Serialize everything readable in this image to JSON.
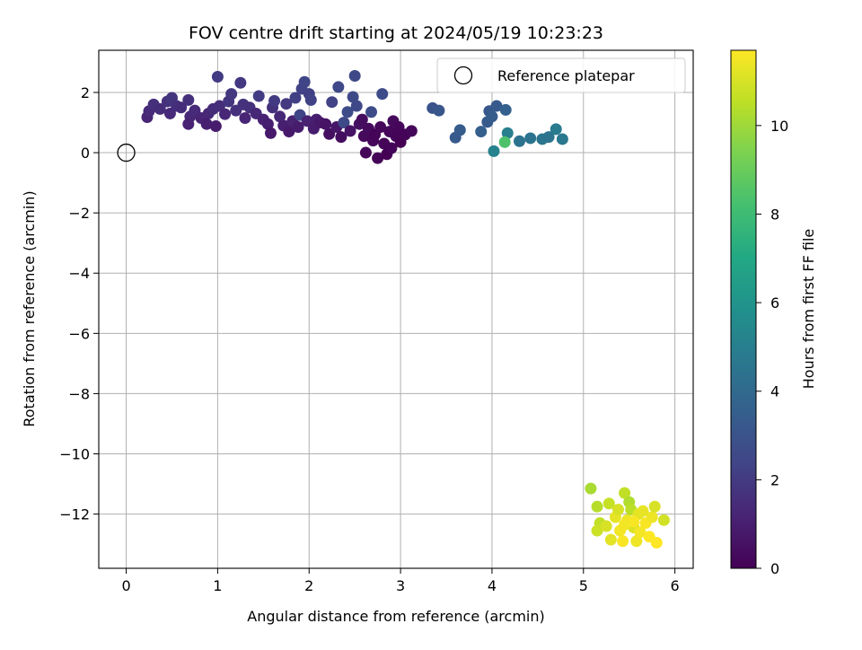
{
  "chart_data": {
    "type": "scatter",
    "title": "FOV centre drift starting at 2024/05/19 10:23:23",
    "xlabel": "Angular distance from reference (arcmin)",
    "ylabel": "Rotation from reference (arcmin)",
    "xlim": [
      -0.3,
      6.2
    ],
    "ylim": [
      -13.8,
      3.4
    ],
    "xticks": [
      0,
      1,
      2,
      3,
      4,
      5,
      6
    ],
    "xtick_labels": [
      "0",
      "1",
      "2",
      "3",
      "4",
      "5",
      "6"
    ],
    "yticks": [
      2,
      0,
      -2,
      -4,
      -6,
      -8,
      -10,
      -12
    ],
    "ytick_labels": [
      "2",
      "0",
      "−2",
      "−4",
      "−6",
      "−8",
      "−10",
      "−12"
    ],
    "grid": true,
    "legend": {
      "position": "upper-right",
      "entries": [
        {
          "label": "Reference platepar",
          "marker": "open-circle"
        }
      ]
    },
    "reference_point": {
      "x": 0,
      "y": 0
    },
    "colorbar": {
      "label": "Hours from first FF file",
      "colormap": "viridis",
      "range": [
        0,
        11.7
      ],
      "ticks": [
        0,
        2,
        4,
        6,
        8,
        10
      ],
      "tick_labels": [
        "0",
        "2",
        "4",
        "6",
        "8",
        "10"
      ]
    },
    "points": [
      {
        "x": 0.23,
        "y": 1.18,
        "h": 1.2
      },
      {
        "x": 0.25,
        "y": 1.38,
        "h": 1.4
      },
      {
        "x": 0.3,
        "y": 1.6,
        "h": 1.6
      },
      {
        "x": 0.37,
        "y": 1.45,
        "h": 1.5
      },
      {
        "x": 0.45,
        "y": 1.7,
        "h": 1.7
      },
      {
        "x": 0.5,
        "y": 1.82,
        "h": 1.8
      },
      {
        "x": 0.55,
        "y": 1.55,
        "h": 1.6
      },
      {
        "x": 0.48,
        "y": 1.3,
        "h": 1.4
      },
      {
        "x": 0.6,
        "y": 1.5,
        "h": 1.5
      },
      {
        "x": 0.68,
        "y": 1.75,
        "h": 1.6
      },
      {
        "x": 0.7,
        "y": 1.2,
        "h": 1.3
      },
      {
        "x": 0.68,
        "y": 0.95,
        "h": 1.1
      },
      {
        "x": 0.75,
        "y": 1.4,
        "h": 1.4
      },
      {
        "x": 0.82,
        "y": 1.15,
        "h": 1.2
      },
      {
        "x": 0.9,
        "y": 1.3,
        "h": 1.3
      },
      {
        "x": 0.88,
        "y": 0.95,
        "h": 1.0
      },
      {
        "x": 0.95,
        "y": 1.45,
        "h": 1.5
      },
      {
        "x": 0.98,
        "y": 0.88,
        "h": 0.9
      },
      {
        "x": 1.02,
        "y": 1.55,
        "h": 1.5
      },
      {
        "x": 1.0,
        "y": 2.52,
        "h": 2.0
      },
      {
        "x": 1.08,
        "y": 1.28,
        "h": 1.3
      },
      {
        "x": 1.12,
        "y": 1.7,
        "h": 1.8
      },
      {
        "x": 1.15,
        "y": 1.95,
        "h": 1.9
      },
      {
        "x": 1.2,
        "y": 1.4,
        "h": 1.6
      },
      {
        "x": 1.25,
        "y": 2.32,
        "h": 1.9
      },
      {
        "x": 1.28,
        "y": 1.6,
        "h": 1.7
      },
      {
        "x": 1.3,
        "y": 1.15,
        "h": 1.2
      },
      {
        "x": 1.35,
        "y": 1.5,
        "h": 1.6
      },
      {
        "x": 1.42,
        "y": 1.3,
        "h": 1.3
      },
      {
        "x": 1.45,
        "y": 1.88,
        "h": 2.1
      },
      {
        "x": 1.5,
        "y": 1.1,
        "h": 1.1
      },
      {
        "x": 1.55,
        "y": 0.95,
        "h": 1.0
      },
      {
        "x": 1.58,
        "y": 0.65,
        "h": 0.8
      },
      {
        "x": 1.6,
        "y": 1.5,
        "h": 1.6
      },
      {
        "x": 1.62,
        "y": 1.72,
        "h": 2.0
      },
      {
        "x": 1.68,
        "y": 1.2,
        "h": 1.3
      },
      {
        "x": 1.72,
        "y": 0.9,
        "h": 1.0
      },
      {
        "x": 1.75,
        "y": 1.62,
        "h": 1.9
      },
      {
        "x": 1.78,
        "y": 0.7,
        "h": 0.8
      },
      {
        "x": 1.82,
        "y": 1.05,
        "h": 1.1
      },
      {
        "x": 1.85,
        "y": 1.82,
        "h": 2.2
      },
      {
        "x": 1.88,
        "y": 0.85,
        "h": 0.9
      },
      {
        "x": 1.9,
        "y": 1.25,
        "h": 2.4
      },
      {
        "x": 1.92,
        "y": 2.12,
        "h": 2.3
      },
      {
        "x": 1.95,
        "y": 2.35,
        "h": 2.4
      },
      {
        "x": 1.98,
        "y": 1.05,
        "h": 1.1
      },
      {
        "x": 2.0,
        "y": 1.95,
        "h": 2.2
      },
      {
        "x": 2.02,
        "y": 1.75,
        "h": 2.3
      },
      {
        "x": 2.05,
        "y": 0.8,
        "h": 0.9
      },
      {
        "x": 2.08,
        "y": 1.1,
        "h": 1.0
      },
      {
        "x": 2.12,
        "y": 1.0,
        "h": 0.8
      },
      {
        "x": 2.18,
        "y": 0.95,
        "h": 0.6
      },
      {
        "x": 2.22,
        "y": 0.62,
        "h": 0.5
      },
      {
        "x": 2.25,
        "y": 1.68,
        "h": 2.3
      },
      {
        "x": 2.3,
        "y": 0.85,
        "h": 0.7
      },
      {
        "x": 2.32,
        "y": 2.18,
        "h": 2.5
      },
      {
        "x": 2.35,
        "y": 0.52,
        "h": 0.4
      },
      {
        "x": 2.38,
        "y": 1.0,
        "h": 2.6
      },
      {
        "x": 2.42,
        "y": 1.35,
        "h": 2.7
      },
      {
        "x": 2.45,
        "y": 0.72,
        "h": 0.6
      },
      {
        "x": 2.48,
        "y": 1.85,
        "h": 2.6
      },
      {
        "x": 2.5,
        "y": 2.55,
        "h": 2.6
      },
      {
        "x": 2.52,
        "y": 1.55,
        "h": 2.5
      },
      {
        "x": 2.55,
        "y": 0.95,
        "h": 0.5
      },
      {
        "x": 2.58,
        "y": 1.1,
        "h": 0.4
      },
      {
        "x": 2.6,
        "y": 0.55,
        "h": 0.3
      },
      {
        "x": 2.62,
        "y": 0.0,
        "h": 0.2
      },
      {
        "x": 2.65,
        "y": 0.8,
        "h": 0.3
      },
      {
        "x": 2.68,
        "y": 1.35,
        "h": 2.7
      },
      {
        "x": 2.7,
        "y": 0.4,
        "h": 0.2
      },
      {
        "x": 2.72,
        "y": 0.6,
        "h": 0.1
      },
      {
        "x": 2.75,
        "y": -0.18,
        "h": 0.1
      },
      {
        "x": 2.78,
        "y": 0.85,
        "h": 0.2
      },
      {
        "x": 2.8,
        "y": 1.95,
        "h": 2.7
      },
      {
        "x": 2.82,
        "y": 0.3,
        "h": 0.1
      },
      {
        "x": 2.85,
        "y": -0.05,
        "h": 0.0
      },
      {
        "x": 2.88,
        "y": 0.7,
        "h": 0.2
      },
      {
        "x": 2.9,
        "y": 0.15,
        "h": 0.1
      },
      {
        "x": 2.92,
        "y": 1.05,
        "h": 0.3
      },
      {
        "x": 2.95,
        "y": 0.55,
        "h": 0.1
      },
      {
        "x": 2.98,
        "y": 0.85,
        "h": 0.2
      },
      {
        "x": 3.0,
        "y": 0.35,
        "h": 0.0
      },
      {
        "x": 3.05,
        "y": 0.6,
        "h": 0.1
      },
      {
        "x": 3.12,
        "y": 0.72,
        "h": 0.2
      },
      {
        "x": 3.35,
        "y": 1.48,
        "h": 3.0
      },
      {
        "x": 3.42,
        "y": 1.4,
        "h": 3.1
      },
      {
        "x": 3.6,
        "y": 0.5,
        "h": 3.3
      },
      {
        "x": 3.65,
        "y": 0.75,
        "h": 3.4
      },
      {
        "x": 3.88,
        "y": 0.7,
        "h": 3.5
      },
      {
        "x": 3.95,
        "y": 1.02,
        "h": 3.3
      },
      {
        "x": 3.97,
        "y": 1.38,
        "h": 3.2
      },
      {
        "x": 4.0,
        "y": 1.2,
        "h": 3.4
      },
      {
        "x": 4.02,
        "y": 0.05,
        "h": 5.2
      },
      {
        "x": 4.05,
        "y": 1.55,
        "h": 3.3
      },
      {
        "x": 4.15,
        "y": 1.42,
        "h": 3.6
      },
      {
        "x": 4.17,
        "y": 0.65,
        "h": 5.0
      },
      {
        "x": 4.14,
        "y": 0.35,
        "h": 8.4
      },
      {
        "x": 4.3,
        "y": 0.38,
        "h": 4.4
      },
      {
        "x": 4.42,
        "y": 0.48,
        "h": 4.5
      },
      {
        "x": 4.55,
        "y": 0.45,
        "h": 4.6
      },
      {
        "x": 4.62,
        "y": 0.52,
        "h": 4.5
      },
      {
        "x": 4.7,
        "y": 0.78,
        "h": 4.8
      },
      {
        "x": 4.77,
        "y": 0.45,
        "h": 4.7
      },
      {
        "x": 5.08,
        "y": -11.15,
        "h": 10.2
      },
      {
        "x": 5.15,
        "y": -11.75,
        "h": 10.4
      },
      {
        "x": 5.18,
        "y": -12.3,
        "h": 10.6
      },
      {
        "x": 5.15,
        "y": -12.55,
        "h": 10.8
      },
      {
        "x": 5.25,
        "y": -12.4,
        "h": 11.0
      },
      {
        "x": 5.28,
        "y": -11.65,
        "h": 10.7
      },
      {
        "x": 5.3,
        "y": -12.85,
        "h": 11.2
      },
      {
        "x": 5.35,
        "y": -12.1,
        "h": 11.3
      },
      {
        "x": 5.38,
        "y": -11.85,
        "h": 11.0
      },
      {
        "x": 5.4,
        "y": -12.55,
        "h": 11.5
      },
      {
        "x": 5.43,
        "y": -12.9,
        "h": 11.6
      },
      {
        "x": 5.45,
        "y": -11.3,
        "h": 10.6
      },
      {
        "x": 5.48,
        "y": -12.2,
        "h": 11.4
      },
      {
        "x": 5.5,
        "y": -11.6,
        "h": 10.3
      },
      {
        "x": 5.52,
        "y": -11.85,
        "h": 10.5
      },
      {
        "x": 5.55,
        "y": -12.45,
        "h": 11.1
      },
      {
        "x": 5.58,
        "y": -12.9,
        "h": 11.4
      },
      {
        "x": 5.6,
        "y": -12.0,
        "h": 11.2
      },
      {
        "x": 5.62,
        "y": -12.6,
        "h": 11.5
      },
      {
        "x": 5.65,
        "y": -11.9,
        "h": 11.3
      },
      {
        "x": 5.68,
        "y": -12.3,
        "h": 11.6
      },
      {
        "x": 5.72,
        "y": -12.75,
        "h": 11.7
      },
      {
        "x": 5.75,
        "y": -12.1,
        "h": 11.4
      },
      {
        "x": 5.78,
        "y": -11.75,
        "h": 11.0
      },
      {
        "x": 5.8,
        "y": -12.95,
        "h": 11.7
      },
      {
        "x": 5.88,
        "y": -12.2,
        "h": 10.9
      },
      {
        "x": 5.55,
        "y": -12.25,
        "h": 11.6
      },
      {
        "x": 5.45,
        "y": -12.35,
        "h": 11.5
      }
    ]
  }
}
